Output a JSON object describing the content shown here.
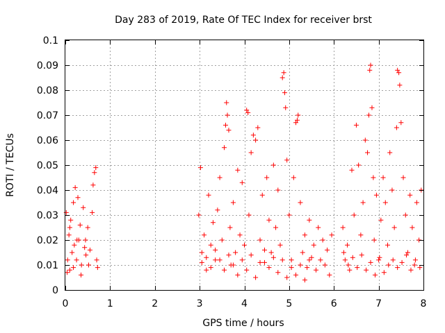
{
  "chart_data": {
    "type": "scatter",
    "title": "Day 283 of 2019, Rate Of TEC Index for receiver brst",
    "xlabel": "GPS time / hours",
    "ylabel": "ROTI / TECUs",
    "xlim": [
      0,
      8
    ],
    "ylim": [
      0,
      0.1
    ],
    "x_ticks": [
      "0",
      "1",
      "2",
      "3",
      "4",
      "5",
      "6",
      "7",
      "8"
    ],
    "y_ticks": [
      "0",
      "0.01",
      "0.02",
      "0.03",
      "0.04",
      "0.05",
      "0.06",
      "0.07",
      "0.08",
      "0.09",
      "0.1"
    ],
    "grid": true,
    "marker": "+",
    "color": "#ff0000",
    "series": [
      {
        "name": "ROTI",
        "points": [
          [
            0.02,
            0.031
          ],
          [
            0.05,
            0.012
          ],
          [
            0.08,
            0.022
          ],
          [
            0.1,
            0.008
          ],
          [
            0.12,
            0.028
          ],
          [
            0.15,
            0.015
          ],
          [
            0.18,
            0.035
          ],
          [
            0.2,
            0.018
          ],
          [
            0.22,
            0.041
          ],
          [
            0.25,
            0.012
          ],
          [
            0.28,
            0.037
          ],
          [
            0.3,
            0.02
          ],
          [
            0.33,
            0.026
          ],
          [
            0.36,
            0.01
          ],
          [
            0.4,
            0.033
          ],
          [
            0.43,
            0.017
          ],
          [
            0.46,
            0.014
          ],
          [
            0.5,
            0.025
          ],
          [
            0.55,
            0.016
          ],
          [
            0.6,
            0.031
          ],
          [
            0.62,
            0.042
          ],
          [
            0.65,
            0.047
          ],
          [
            0.68,
            0.049
          ],
          [
            0.7,
            0.012
          ],
          [
            0.72,
            0.009
          ],
          [
            0.04,
            0.007
          ],
          [
            0.1,
            0.025
          ],
          [
            0.18,
            0.009
          ],
          [
            0.26,
            0.02
          ],
          [
            0.35,
            0.006
          ],
          [
            0.45,
            0.02
          ],
          [
            0.52,
            0.01
          ],
          [
            2.98,
            0.03
          ],
          [
            3.02,
            0.049
          ],
          [
            3.05,
            0.015
          ],
          [
            3.1,
            0.022
          ],
          [
            3.15,
            0.008
          ],
          [
            3.2,
            0.038
          ],
          [
            3.25,
            0.018
          ],
          [
            3.3,
            0.027
          ],
          [
            3.35,
            0.012
          ],
          [
            3.4,
            0.032
          ],
          [
            3.45,
            0.045
          ],
          [
            3.5,
            0.02
          ],
          [
            3.55,
            0.057
          ],
          [
            3.58,
            0.066
          ],
          [
            3.6,
            0.075
          ],
          [
            3.62,
            0.07
          ],
          [
            3.65,
            0.064
          ],
          [
            3.68,
            0.025
          ],
          [
            3.7,
            0.01
          ],
          [
            3.75,
            0.035
          ],
          [
            3.8,
            0.015
          ],
          [
            3.85,
            0.048
          ],
          [
            3.9,
            0.022
          ],
          [
            3.95,
            0.043
          ],
          [
            4.0,
            0.018
          ],
          [
            4.05,
            0.072
          ],
          [
            4.08,
            0.071
          ],
          [
            4.1,
            0.03
          ],
          [
            4.15,
            0.055
          ],
          [
            4.2,
            0.062
          ],
          [
            4.25,
            0.06
          ],
          [
            4.3,
            0.065
          ],
          [
            4.35,
            0.02
          ],
          [
            4.4,
            0.038
          ],
          [
            4.45,
            0.011
          ],
          [
            4.5,
            0.045
          ],
          [
            4.55,
            0.028
          ],
          [
            4.6,
            0.015
          ],
          [
            4.65,
            0.05
          ],
          [
            4.7,
            0.025
          ],
          [
            4.75,
            0.04
          ],
          [
            4.8,
            0.018
          ],
          [
            4.85,
            0.085
          ],
          [
            4.88,
            0.087
          ],
          [
            4.9,
            0.079
          ],
          [
            4.92,
            0.073
          ],
          [
            4.95,
            0.052
          ],
          [
            5.0,
            0.03
          ],
          [
            5.05,
            0.012
          ],
          [
            5.1,
            0.045
          ],
          [
            5.15,
            0.067
          ],
          [
            5.18,
            0.068
          ],
          [
            5.2,
            0.07
          ],
          [
            5.25,
            0.035
          ],
          [
            5.3,
            0.015
          ],
          [
            5.35,
            0.022
          ],
          [
            5.4,
            0.009
          ],
          [
            5.45,
            0.028
          ],
          [
            5.5,
            0.013
          ],
          [
            5.55,
            0.018
          ],
          [
            5.6,
            0.008
          ],
          [
            5.65,
            0.025
          ],
          [
            5.7,
            0.012
          ],
          [
            5.75,
            0.02
          ],
          [
            5.8,
            0.01
          ],
          [
            5.85,
            0.016
          ],
          [
            5.9,
            0.006
          ],
          [
            5.95,
            0.022
          ],
          [
            3.05,
            0.011
          ],
          [
            3.15,
            0.013
          ],
          [
            3.25,
            0.009
          ],
          [
            3.35,
            0.016
          ],
          [
            3.45,
            0.012
          ],
          [
            3.55,
            0.008
          ],
          [
            3.65,
            0.014
          ],
          [
            3.75,
            0.01
          ],
          [
            3.85,
            0.006
          ],
          [
            3.95,
            0.012
          ],
          [
            4.05,
            0.008
          ],
          [
            4.15,
            0.014
          ],
          [
            4.25,
            0.005
          ],
          [
            4.35,
            0.011
          ],
          [
            4.45,
            0.016
          ],
          [
            4.55,
            0.009
          ],
          [
            4.65,
            0.013
          ],
          [
            4.75,
            0.007
          ],
          [
            4.85,
            0.012
          ],
          [
            4.95,
            0.005
          ],
          [
            5.05,
            0.009
          ],
          [
            5.15,
            0.006
          ],
          [
            5.25,
            0.01
          ],
          [
            5.35,
            0.004
          ],
          [
            5.45,
            0.012
          ],
          [
            6.2,
            0.025
          ],
          [
            6.25,
            0.012
          ],
          [
            6.3,
            0.018
          ],
          [
            6.35,
            0.008
          ],
          [
            6.4,
            0.048
          ],
          [
            6.45,
            0.03
          ],
          [
            6.5,
            0.066
          ],
          [
            6.55,
            0.05
          ],
          [
            6.6,
            0.022
          ],
          [
            6.65,
            0.035
          ],
          [
            6.7,
            0.06
          ],
          [
            6.75,
            0.055
          ],
          [
            6.78,
            0.07
          ],
          [
            6.8,
            0.088
          ],
          [
            6.82,
            0.09
          ],
          [
            6.85,
            0.073
          ],
          [
            6.88,
            0.045
          ],
          [
            6.9,
            0.02
          ],
          [
            6.95,
            0.038
          ],
          [
            7.0,
            0.012
          ],
          [
            7.05,
            0.028
          ],
          [
            7.1,
            0.045
          ],
          [
            7.15,
            0.035
          ],
          [
            7.2,
            0.018
          ],
          [
            7.25,
            0.055
          ],
          [
            7.3,
            0.04
          ],
          [
            7.35,
            0.025
          ],
          [
            7.4,
            0.065
          ],
          [
            7.42,
            0.088
          ],
          [
            7.45,
            0.087
          ],
          [
            7.47,
            0.082
          ],
          [
            7.5,
            0.067
          ],
          [
            7.55,
            0.045
          ],
          [
            7.6,
            0.03
          ],
          [
            7.65,
            0.015
          ],
          [
            7.7,
            0.038
          ],
          [
            7.75,
            0.025
          ],
          [
            7.8,
            0.01
          ],
          [
            7.85,
            0.035
          ],
          [
            7.9,
            0.02
          ],
          [
            7.95,
            0.04
          ],
          [
            6.22,
            0.015
          ],
          [
            6.32,
            0.01
          ],
          [
            6.42,
            0.013
          ],
          [
            6.52,
            0.009
          ],
          [
            6.62,
            0.014
          ],
          [
            6.72,
            0.008
          ],
          [
            6.82,
            0.011
          ],
          [
            6.92,
            0.006
          ],
          [
            7.02,
            0.013
          ],
          [
            7.12,
            0.007
          ],
          [
            7.22,
            0.01
          ],
          [
            7.32,
            0.012
          ],
          [
            7.42,
            0.009
          ],
          [
            7.52,
            0.011
          ],
          [
            7.62,
            0.014
          ],
          [
            7.72,
            0.008
          ],
          [
            7.82,
            0.012
          ],
          [
            7.92,
            0.009
          ]
        ]
      }
    ]
  }
}
